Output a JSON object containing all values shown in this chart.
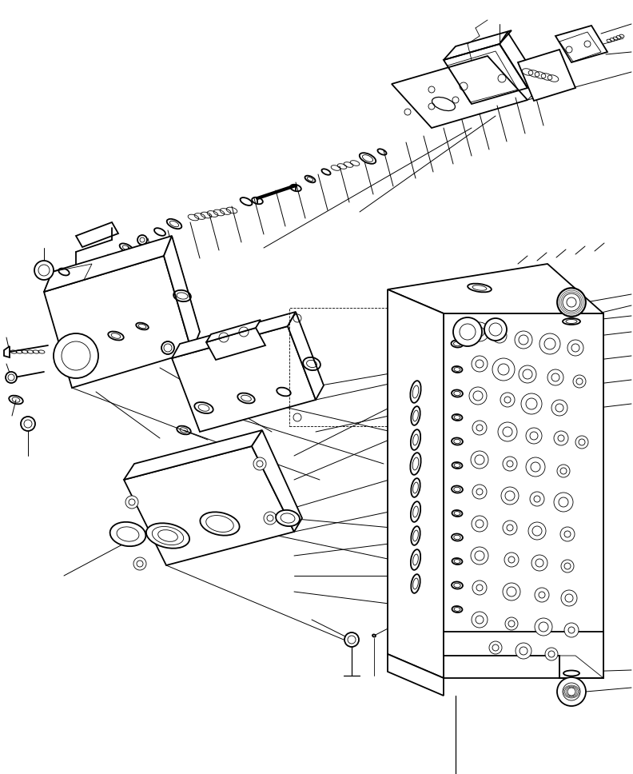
{
  "bg_color": "#ffffff",
  "fg_color": "#000000",
  "fig_width": 7.92,
  "fig_height": 9.68,
  "dpi": 100,
  "lw_thick": 1.3,
  "lw_med": 0.9,
  "lw_thin": 0.6,
  "lw_leader": 0.7
}
